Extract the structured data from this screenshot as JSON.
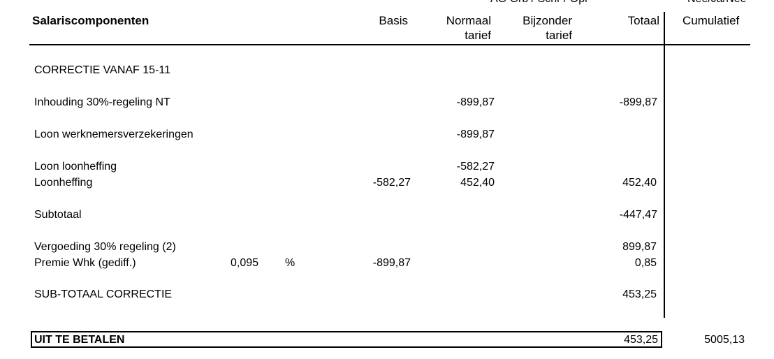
{
  "top_cut": {
    "left": "AG Grb / Schr / Opr",
    "right": "Nee/Ja/Nee"
  },
  "header": {
    "components": "Salariscomponenten",
    "basis": "Basis",
    "normal_rate": [
      "Normaal",
      "tarief"
    ],
    "special_rate": [
      "Bijzonder",
      "tarief"
    ],
    "total": "Totaal",
    "cumulative": "Cumulatief"
  },
  "rows": [
    {
      "label": "CORRECTIE VANAF 15-11"
    },
    {
      "label": "Inhouding 30%-regeling NT",
      "normal": "-899,87",
      "total": "-899,87"
    },
    {
      "label": "Loon werknemersverzekeringen",
      "normal": "-899,87"
    },
    {
      "label": "Loon loonheffing",
      "normal": "-582,27"
    },
    {
      "label": "Loonheffing",
      "basis": "-582,27",
      "normal": "452,40",
      "total": "452,40"
    },
    {
      "label": "Subtotaal",
      "total": "-447,47"
    },
    {
      "label": "Vergoeding  30% regeling (2)",
      "total": "899,87"
    },
    {
      "label": "Premie Whk (gediff.)",
      "rate": "0,095",
      "unit": "%",
      "basis": "-899,87",
      "total": "0,85"
    },
    {
      "label": "SUB-TOTAAL CORRECTIE",
      "total": "453,25"
    }
  ],
  "footer": {
    "label": "UIT TE BETALEN",
    "total": "453,25",
    "cumulative": "5005,13"
  }
}
